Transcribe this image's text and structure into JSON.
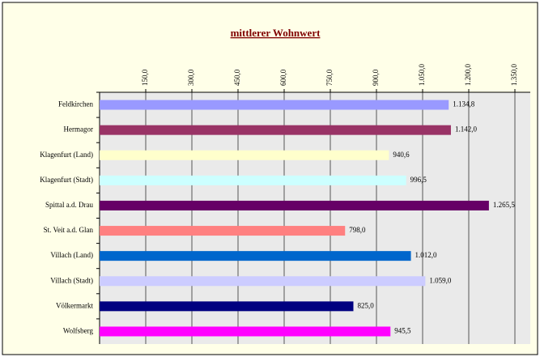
{
  "chart_data": {
    "type": "barh",
    "title": "mittlerer Wohnwert",
    "categories": [
      "Feldkirchen",
      "Hermagor",
      "Klagenfurt (Land)",
      "Klagenfurt (Stadt)",
      "Spittal a.d. Drau",
      "St. Veit a.d. Glan",
      "Villach (Land)",
      "Villach (Stadt)",
      "Völkermarkt",
      "Wolfsberg"
    ],
    "values": [
      1134.8,
      1142.0,
      940.6,
      996.5,
      1265.5,
      798.0,
      1012.0,
      1059.0,
      825.0,
      945.5
    ],
    "value_labels": [
      "1.134,8",
      "1.142,0",
      "940,6",
      "996,5",
      "1.265,5",
      "798,0",
      "1.012,0",
      "1.059,0",
      "825,0",
      "945,5"
    ],
    "colors": [
      "#9999ff",
      "#993366",
      "#ffffcc",
      "#ccffff",
      "#660066",
      "#ff8080",
      "#0066cc",
      "#ccccff",
      "#000080",
      "#ff00ff"
    ],
    "xlim": [
      0,
      1400
    ],
    "xticks": [
      {
        "value": 150,
        "label": "150,0"
      },
      {
        "value": 300,
        "label": "300,0"
      },
      {
        "value": 450,
        "label": "450,0"
      },
      {
        "value": 600,
        "label": "600,0"
      },
      {
        "value": 750,
        "label": "750,0"
      },
      {
        "value": 900,
        "label": "900,0"
      },
      {
        "value": 1050,
        "label": "1.050,0"
      },
      {
        "value": 1200,
        "label": "1.200,0"
      },
      {
        "value": 1350,
        "label": "1.350,0"
      }
    ],
    "grid": true
  }
}
